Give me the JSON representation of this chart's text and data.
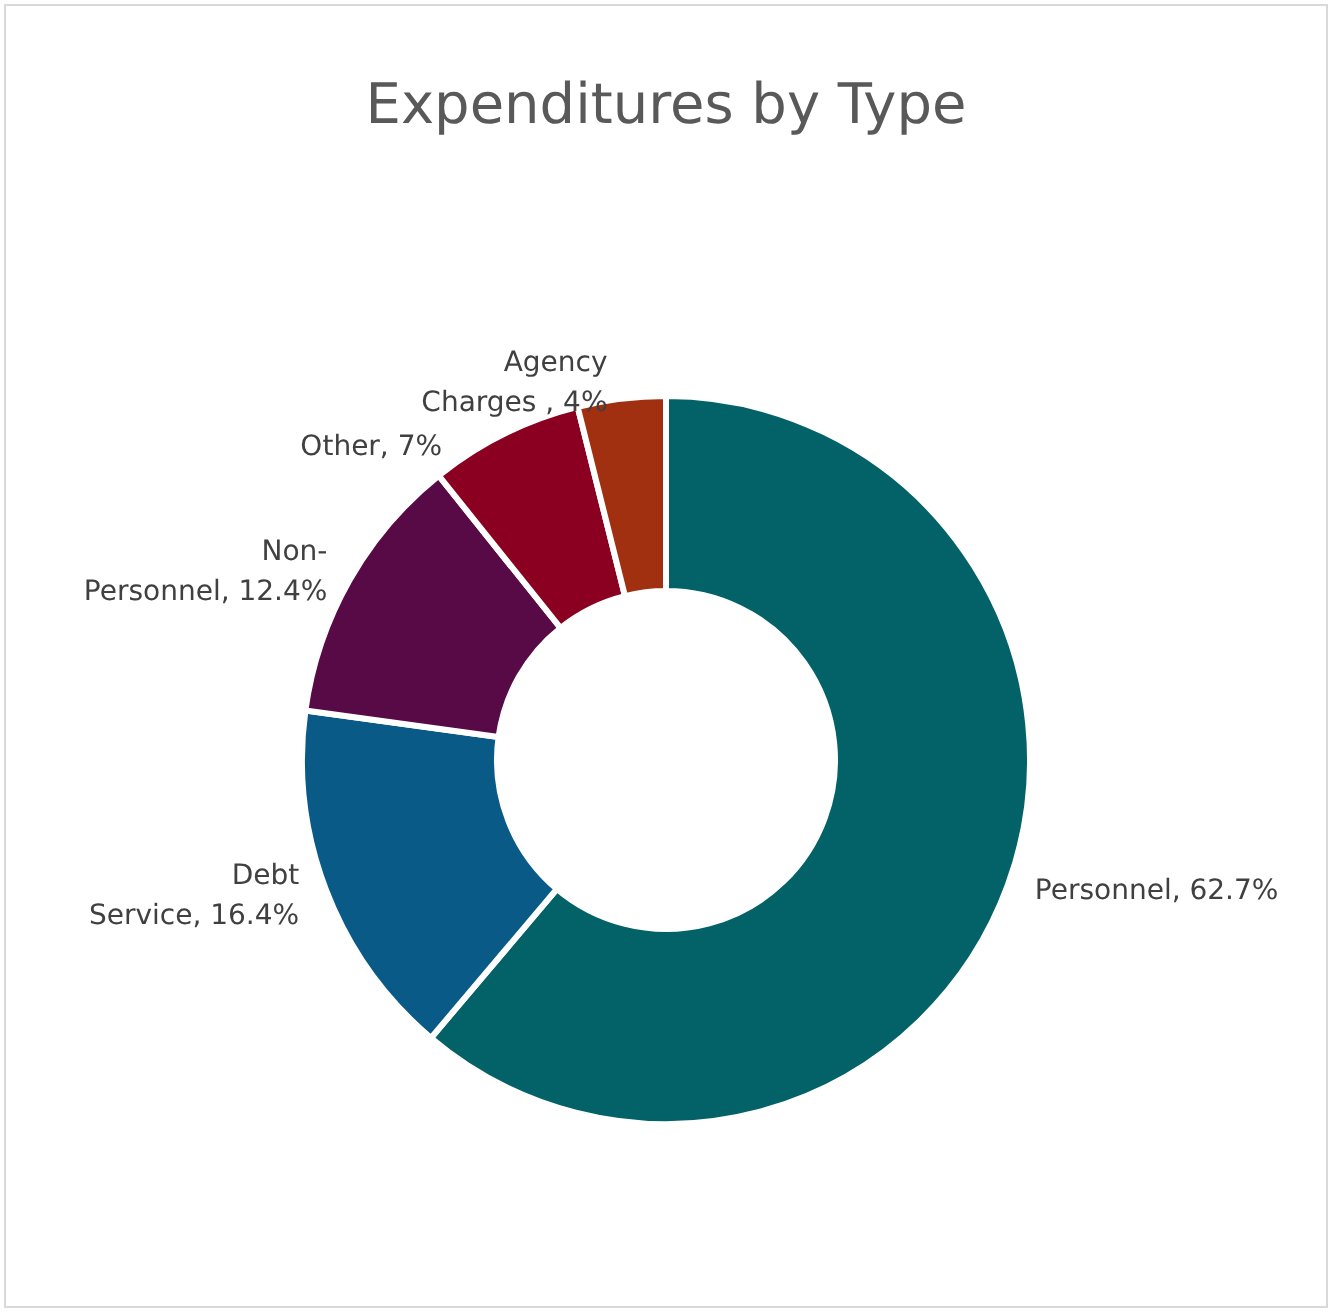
{
  "chart_data": {
    "type": "donut",
    "title": "Expenditures by Type",
    "categories": [
      "Personnel",
      "Debt Service",
      "Non-Personnel",
      "Other",
      "Agency Charges "
    ],
    "values": [
      62.7,
      16.4,
      12.4,
      7,
      4
    ],
    "value_labels": [
      "62.7%",
      "16.4%",
      "12.4%",
      "7%",
      "4%"
    ],
    "colors": [
      "#036168",
      "#0a5a87",
      "#570a45",
      "#8b0020",
      "#a0300f"
    ],
    "legend": false
  }
}
